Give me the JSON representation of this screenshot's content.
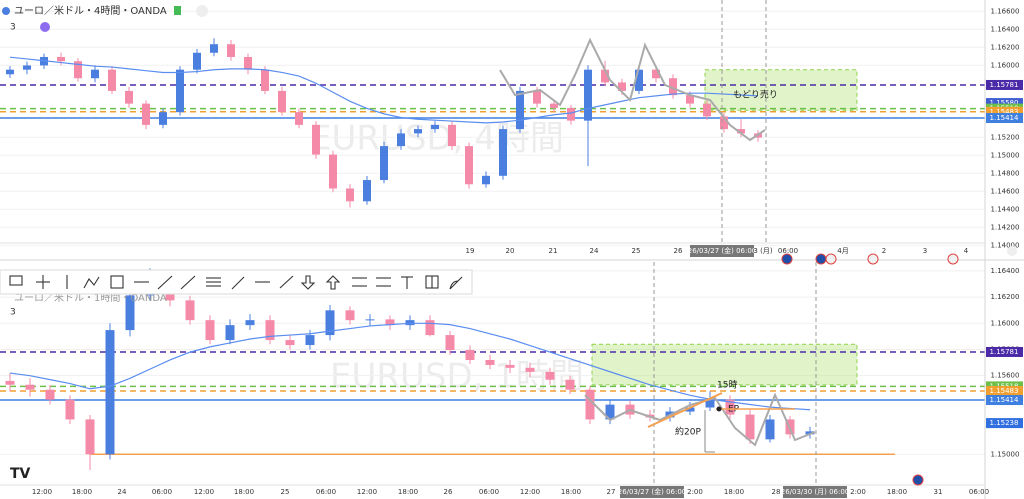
{
  "chart_data": [
    {
      "type": "candlestick",
      "title": "ユーロ／米ドル・4時間・OANDA",
      "indicators": 3,
      "watermark": "EURUSD, 4時間",
      "ylim": [
        1.13859,
        1.16725
      ],
      "yticks": [
        {
          "value": 1.14,
          "label": "1.14000"
        },
        {
          "value": 1.142,
          "label": "1.14200"
        },
        {
          "value": 1.144,
          "label": "1.14400"
        },
        {
          "value": 1.146,
          "label": "1.14600"
        },
        {
          "value": 1.148,
          "label": "1.14800"
        },
        {
          "value": 1.15,
          "label": "1.15000"
        },
        {
          "value": 1.152,
          "label": "1.15200"
        },
        {
          "value": 1.16,
          "label": "1.16000"
        },
        {
          "value": 1.162,
          "label": "1.16200"
        },
        {
          "value": 1.164,
          "label": "1.16400"
        },
        {
          "value": 1.166,
          "label": "1.16600"
        }
      ],
      "grid": true,
      "up_color": "#4a7fe0",
      "down_color": "#f48aa8",
      "ma_color": "#5a8df0",
      "x_labels": [
        "19",
        "20",
        "21",
        "24",
        "25",
        "26",
        "26/03/27 (金) 06:00",
        "3 (月)",
        "06:00",
        "4月",
        "2",
        "3",
        "4"
      ],
      "levels": [
        {
          "value": 1.15781,
          "label": "1.15781",
          "color": "#4b2aa8",
          "line": "dashed"
        },
        {
          "value": 1.1558,
          "label": "1.15580",
          "color": "#3f5fd0"
        },
        {
          "value": 1.15518,
          "label": "1.15518",
          "color": "#6cc04a",
          "line": "dashed"
        },
        {
          "value": 1.15483,
          "label": "1.15483",
          "color": "#f0a030",
          "line": "dashed"
        },
        {
          "value": 1.15414,
          "label": "1.15414",
          "color": "#3f7fe0",
          "line": "solid"
        }
      ],
      "zones": [
        {
          "from": 1.1595,
          "to": 1.155
        }
      ],
      "annotations": [
        "もどり売り"
      ],
      "candles": [
        [
          1.159,
          1.1599,
          1.1586,
          1.15951
        ],
        [
          1.15951,
          1.1604,
          1.159,
          1.15998
        ],
        [
          1.15998,
          1.1613,
          1.1596,
          1.16092
        ],
        [
          1.16092,
          1.1614,
          1.16,
          1.16045
        ],
        [
          1.16045,
          1.1608,
          1.1582,
          1.15856
        ],
        [
          1.15856,
          1.16,
          1.1581,
          1.15951
        ],
        [
          1.15951,
          1.1599,
          1.1568,
          1.15715
        ],
        [
          1.15715,
          1.1576,
          1.1553,
          1.15574
        ],
        [
          1.15574,
          1.1561,
          1.1529,
          1.15338
        ],
        [
          1.15338,
          1.1552,
          1.153,
          1.15479
        ],
        [
          1.15479,
          1.1599,
          1.1544,
          1.15951
        ],
        [
          1.15951,
          1.1618,
          1.1591,
          1.16139
        ],
        [
          1.16139,
          1.163,
          1.161,
          1.16234
        ],
        [
          1.16234,
          1.1628,
          1.1605,
          1.16092
        ],
        [
          1.16092,
          1.1613,
          1.159,
          1.15951
        ],
        [
          1.15951,
          1.1599,
          1.1568,
          1.15715
        ],
        [
          1.15715,
          1.1576,
          1.1544,
          1.15479
        ],
        [
          1.15479,
          1.1552,
          1.153,
          1.15338
        ],
        [
          1.15338,
          1.1538,
          1.1496,
          1.15008
        ],
        [
          1.15008,
          1.1505,
          1.1459,
          1.14631
        ],
        [
          1.14631,
          1.1468,
          1.1442,
          1.14489
        ],
        [
          1.14489,
          1.1477,
          1.1445,
          1.14725
        ],
        [
          1.14725,
          1.1515,
          1.1469,
          1.15102
        ],
        [
          1.15102,
          1.1529,
          1.1506,
          1.15243
        ],
        [
          1.15243,
          1.1533,
          1.152,
          1.15291
        ],
        [
          1.15291,
          1.1538,
          1.1525,
          1.15338
        ],
        [
          1.15338,
          1.1538,
          1.1506,
          1.15102
        ],
        [
          1.15102,
          1.1514,
          1.1463,
          1.14678
        ],
        [
          1.14678,
          1.1482,
          1.1464,
          1.14772
        ],
        [
          1.14772,
          1.1533,
          1.1473,
          1.15291
        ],
        [
          1.15291,
          1.1576,
          1.1525,
          1.15715
        ],
        [
          1.15715,
          1.1576,
          1.1553,
          1.15574
        ],
        [
          1.15574,
          1.1561,
          1.1548,
          1.15526
        ],
        [
          1.15526,
          1.1556,
          1.1534,
          1.15385
        ],
        [
          1.15385,
          1.16,
          1.1488,
          1.15951
        ],
        [
          1.15951,
          1.1605,
          1.1577,
          1.15809
        ],
        [
          1.15809,
          1.1585,
          1.1567,
          1.15715
        ],
        [
          1.15715,
          1.16,
          1.1568,
          1.15951
        ],
        [
          1.15951,
          1.1599,
          1.1581,
          1.15856
        ],
        [
          1.15856,
          1.159,
          1.1563,
          1.15668
        ],
        [
          1.15668,
          1.1571,
          1.1553,
          1.15574
        ],
        [
          1.15574,
          1.1561,
          1.1539,
          1.15432
        ],
        [
          1.15432,
          1.1547,
          1.1525,
          1.15291
        ],
        [
          1.15291,
          1.154,
          1.152,
          1.15243
        ],
        [
          1.15243,
          1.1528,
          1.1515,
          1.15196
        ]
      ],
      "ma": [
        1.1609,
        1.1607,
        1.1605,
        1.1603,
        1.1601,
        1.1599,
        1.1598,
        1.1596,
        1.1594,
        1.1592,
        1.1592,
        1.1593,
        1.1595,
        1.1596,
        1.1596,
        1.1595,
        1.1592,
        1.1588,
        1.158,
        1.157,
        1.156,
        1.1552,
        1.1546,
        1.1542,
        1.154,
        1.1539,
        1.1538,
        1.1537,
        1.1536,
        1.1537,
        1.1539,
        1.1542,
        1.1545,
        1.1547,
        1.1552,
        1.1556,
        1.156,
        1.1564,
        1.1566,
        1.1568,
        1.1569,
        1.1569,
        1.1568,
        1.1567,
        1.1566
      ]
    },
    {
      "type": "candlestick",
      "title": "ユーロ／米ドル・1時間・OANDA",
      "indicators": 3,
      "watermark": "EURUSD, 1時間",
      "ylim": [
        1.14773,
        1.16468
      ],
      "yticks": [
        {
          "value": 1.15,
          "label": "1.15000"
        },
        {
          "value": 1.156,
          "label": "1.15600"
        },
        {
          "value": 1.158,
          "label": "1.15800"
        },
        {
          "value": 1.16,
          "label": "1.16000"
        },
        {
          "value": 1.162,
          "label": "1.16200"
        },
        {
          "value": 1.164,
          "label": "1.16400"
        }
      ],
      "grid": true,
      "up_color": "#4a7fe0",
      "down_color": "#f48aa8",
      "ma_color": "#5a8df0",
      "x_labels": [
        "12:00",
        "18:00",
        "24",
        "06:00",
        "12:00",
        "18:00",
        "25",
        "06:00",
        "12:00",
        "18:00",
        "26",
        "06:00",
        "12:00",
        "18:00",
        "27",
        "26/03/27 (金) 06:00",
        "2:00",
        "18:00",
        "28",
        "26/03/30 (月) 06:00",
        "2:00",
        "18:00",
        "31",
        "06:00"
      ],
      "levels": [
        {
          "value": 1.15781,
          "label": "1.15781",
          "color": "#4b2aa8",
          "line": "dashed"
        },
        {
          "value": 1.15518,
          "label": "1.15518",
          "color": "#6cc04a",
          "line": "dashed"
        },
        {
          "value": 1.15483,
          "label": "1.15483",
          "color": "#f0a030",
          "line": "dashed"
        },
        {
          "value": 1.15414,
          "label": "1.15414",
          "color": "#3f7fe0",
          "line": "solid"
        },
        {
          "value": 1.15238,
          "label": "1.15238",
          "color": "#2f6fe0"
        },
        {
          "value": 1.15,
          "color": "#f5a050",
          "line": "solid"
        }
      ],
      "zones": [
        {
          "from": 1.1584,
          "to": 1.1553
        }
      ],
      "annotations": [
        "15時",
        "EP",
        "約20P"
      ],
      "candles": [
        [
          1.1556,
          1.1562,
          1.1548,
          1.15531
        ],
        [
          1.15531,
          1.1558,
          1.1544,
          1.15493
        ],
        [
          1.15493,
          1.1553,
          1.1538,
          1.15417
        ],
        [
          1.15417,
          1.1545,
          1.1523,
          1.15266
        ],
        [
          1.15266,
          1.153,
          1.1488,
          1.15
        ],
        [
          1.15,
          1.16,
          1.1496,
          1.15948
        ],
        [
          1.15948,
          1.1626,
          1.159,
          1.16213
        ],
        [
          1.16213,
          1.1642,
          1.1617,
          1.16289
        ],
        [
          1.16289,
          1.1633,
          1.1613,
          1.16175
        ],
        [
          1.16175,
          1.1621,
          1.1599,
          1.16024
        ],
        [
          1.16024,
          1.1606,
          1.1584,
          1.15872
        ],
        [
          1.15872,
          1.1603,
          1.1584,
          1.15986
        ],
        [
          1.15986,
          1.1607,
          1.1595,
          1.16024
        ],
        [
          1.16024,
          1.1606,
          1.1584,
          1.15872
        ],
        [
          1.15872,
          1.1591,
          1.158,
          1.15834
        ],
        [
          1.15834,
          1.1595,
          1.158,
          1.1591
        ],
        [
          1.1591,
          1.1614,
          1.1587,
          1.16099
        ],
        [
          1.16099,
          1.1613,
          1.1599,
          1.16024
        ],
        [
          1.16024,
          1.1607,
          1.1598,
          1.1603
        ],
        [
          1.1603,
          1.1606,
          1.1595,
          1.15986
        ],
        [
          1.15986,
          1.1606,
          1.1595,
          1.16024
        ],
        [
          1.16024,
          1.1606,
          1.159,
          1.1591
        ],
        [
          1.1591,
          1.1594,
          1.1576,
          1.15796
        ],
        [
          1.15796,
          1.1583,
          1.1569,
          1.1572
        ],
        [
          1.1572,
          1.1576,
          1.1565,
          1.15682
        ],
        [
          1.15682,
          1.1572,
          1.1562,
          1.1566
        ],
        [
          1.1566,
          1.157,
          1.1559,
          1.15629
        ],
        [
          1.15629,
          1.1566,
          1.1553,
          1.15569
        ],
        [
          1.15569,
          1.156,
          1.1546,
          1.15493
        ],
        [
          1.15493,
          1.1552,
          1.1523,
          1.15266
        ],
        [
          1.15266,
          1.1542,
          1.1523,
          1.15379
        ],
        [
          1.15379,
          1.1541,
          1.1527,
          1.15303
        ],
        [
          1.15303,
          1.1534,
          1.1525,
          1.15281
        ],
        [
          1.15281,
          1.1536,
          1.1525,
          1.15326
        ],
        [
          1.15326,
          1.154,
          1.153,
          1.15357
        ],
        [
          1.15357,
          1.1548,
          1.1533,
          1.15417
        ],
        [
          1.15417,
          1.1545,
          1.1527,
          1.15303
        ],
        [
          1.15303,
          1.1534,
          1.1508,
          1.15114
        ],
        [
          1.15114,
          1.153,
          1.1509,
          1.15266
        ],
        [
          1.15266,
          1.1529,
          1.1512,
          1.15152
        ],
        [
          1.15152,
          1.1521,
          1.1512,
          1.15175
        ]
      ],
      "ma": [
        1.1562,
        1.156,
        1.1557,
        1.1554,
        1.155,
        1.1552,
        1.1558,
        1.1565,
        1.1572,
        1.1578,
        1.1582,
        1.1585,
        1.1588,
        1.159,
        1.1591,
        1.1592,
        1.1594,
        1.1596,
        1.1598,
        1.1599,
        1.16,
        1.16,
        1.1599,
        1.1596,
        1.1592,
        1.1588,
        1.1583,
        1.1578,
        1.1573,
        1.1568,
        1.1563,
        1.1558,
        1.1553,
        1.1549,
        1.1545,
        1.1542,
        1.154,
        1.1538,
        1.1536,
        1.1535,
        1.1534
      ]
    }
  ]
}
